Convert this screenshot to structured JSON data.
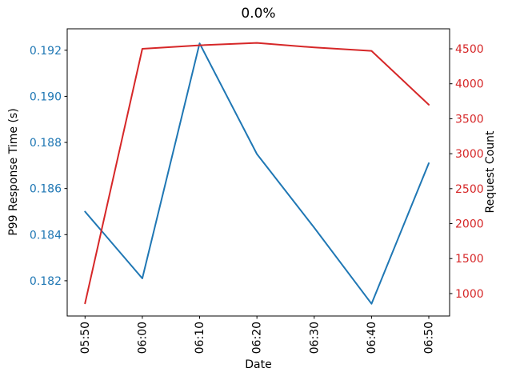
{
  "title": "0.0%",
  "colors": {
    "left_series": "#1f77b4",
    "right_series": "#d62728",
    "axis": "#000000",
    "background": "#ffffff"
  },
  "chart_data": {
    "type": "line",
    "title": "0.0%",
    "xlabel": "Date",
    "x_tick_labels": [
      "05:50",
      "06:00",
      "06:10",
      "06:20",
      "06:30",
      "06:40",
      "06:50"
    ],
    "grid": false,
    "legend": "none",
    "left_axis": {
      "label": "P99 Response Time (s)",
      "color": "#1f77b4",
      "tick_labels": [
        "0.182",
        "0.184",
        "0.186",
        "0.188",
        "0.190",
        "0.192"
      ],
      "ticks": [
        0.182,
        0.184,
        0.186,
        0.188,
        0.19,
        0.192
      ],
      "range": [
        0.18047,
        0.19293
      ]
    },
    "right_axis": {
      "label": "Request Count",
      "color": "#d62728",
      "tick_labels": [
        "1000",
        "1500",
        "2000",
        "2500",
        "3000",
        "3500",
        "4000",
        "4500"
      ],
      "ticks": [
        1000,
        1500,
        2000,
        2500,
        3000,
        3500,
        4000,
        4500
      ],
      "range": [
        679,
        4786
      ]
    },
    "series": [
      {
        "name": "P99 Response Time (s)",
        "axis": "left",
        "color": "#1f77b4",
        "values": [
          0.185,
          0.1821,
          0.1923,
          0.1875,
          0.1843,
          0.181,
          0.1871
        ]
      },
      {
        "name": "Request Count",
        "axis": "right",
        "color": "#d62728",
        "values": [
          860,
          4500,
          4550,
          4585,
          4520,
          4470,
          3700
        ]
      }
    ]
  }
}
